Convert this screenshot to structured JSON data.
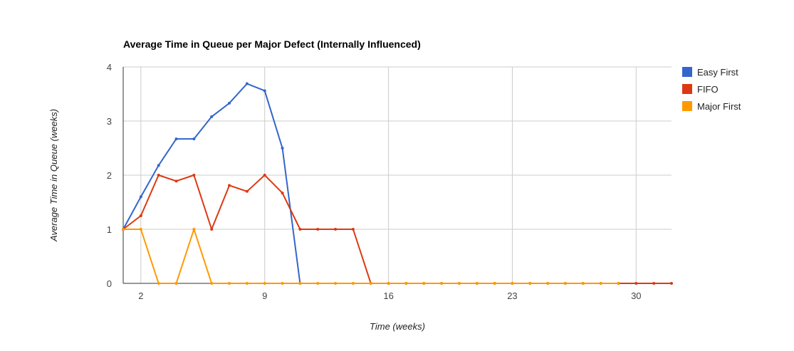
{
  "chart_data": {
    "type": "line",
    "title": "Average Time in Queue per Major Defect (Internally Influenced)",
    "xlabel": "Time (weeks)",
    "ylabel": "Average Time in Queue (weeks)",
    "x": [
      1,
      2,
      3,
      4,
      5,
      6,
      7,
      8,
      9,
      10,
      11,
      12,
      13,
      14,
      15,
      16,
      17,
      18,
      19,
      20,
      21,
      22,
      23,
      24,
      25,
      26,
      27,
      28,
      29,
      30,
      31,
      32
    ],
    "xlim": [
      1,
      32
    ],
    "ylim": [
      0,
      4
    ],
    "x_ticks": [
      2,
      9,
      16,
      23,
      30
    ],
    "y_ticks": [
      0,
      1,
      2,
      3,
      4
    ],
    "grid": true,
    "legend_position": "right",
    "series": [
      {
        "name": "Easy First",
        "color": "#3366cc",
        "values": [
          1.0,
          1.6,
          2.18,
          2.67,
          2.67,
          3.08,
          3.33,
          3.69,
          3.56,
          2.5,
          0,
          null,
          null,
          null,
          null,
          null,
          null,
          null,
          null,
          null,
          null,
          null,
          null,
          null,
          null,
          null,
          null,
          null,
          null,
          null,
          null,
          null
        ]
      },
      {
        "name": "FIFO",
        "color": "#dc3912",
        "values": [
          1.0,
          1.25,
          2.0,
          1.89,
          2.0,
          1.0,
          1.81,
          1.7,
          2.0,
          1.67,
          1.0,
          1.0,
          1.0,
          1.0,
          0,
          0,
          0,
          0,
          0,
          0,
          0,
          0,
          0,
          0,
          0,
          0,
          0,
          0,
          0,
          0,
          0,
          0
        ]
      },
      {
        "name": "Major First",
        "color": "#ff9900",
        "values": [
          1.0,
          1.0,
          0,
          0,
          1.0,
          0,
          0,
          0,
          0,
          0,
          0,
          0,
          0,
          0,
          0,
          0,
          0,
          0,
          0,
          0,
          0,
          0,
          0,
          0,
          0,
          0,
          0,
          0,
          0,
          null,
          null,
          null
        ]
      }
    ]
  }
}
